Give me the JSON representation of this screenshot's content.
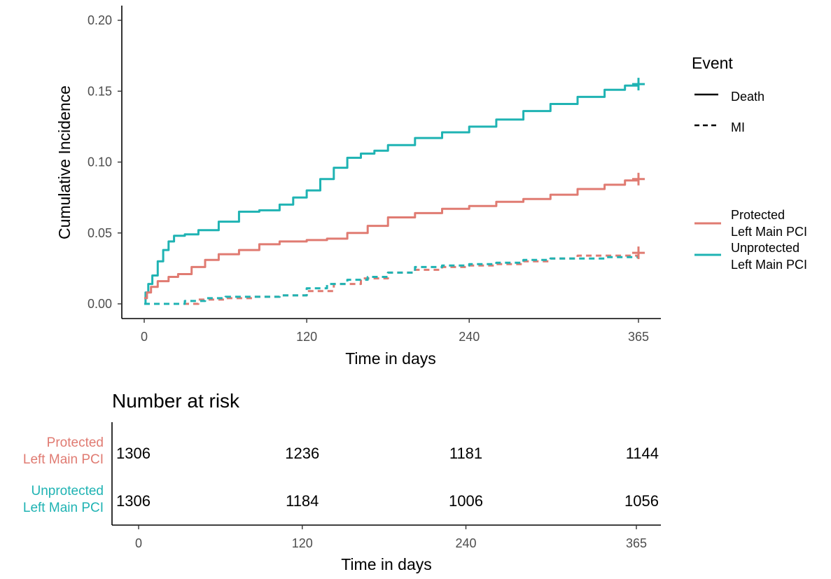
{
  "chart_data": {
    "type": "line",
    "ylabel": "Cumulative Incidence",
    "xlabel": "Time in days",
    "xlim": [
      0,
      365
    ],
    "ylim": [
      0,
      0.2
    ],
    "x_ticks": [
      0,
      120,
      240,
      365
    ],
    "y_ticks": [
      "0.00",
      "0.05",
      "0.10",
      "0.15",
      "0.20"
    ],
    "x_tick_labels": [
      "0",
      "120",
      "240",
      "365"
    ],
    "grid": false,
    "legend_event": {
      "title": "Event",
      "items": [
        {
          "label": "Death",
          "linetype": "solid"
        },
        {
          "label": "MI",
          "linetype": "dashed"
        }
      ],
      "placement": "right"
    },
    "legend_group": {
      "items": [
        {
          "label_line1": "Protected",
          "label_line2": "Left Main PCI",
          "color": "#E07B72"
        },
        {
          "label_line1": "Unprotected",
          "label_line2": "Left Main PCI",
          "color": "#1FB3B3"
        }
      ],
      "placement": "right"
    },
    "series": [
      {
        "group": "Unprotected",
        "event": "Death",
        "color": "#1FB3B3",
        "linetype": "solid",
        "points": [
          [
            0,
            0
          ],
          [
            1,
            0.008
          ],
          [
            3,
            0.014
          ],
          [
            6,
            0.02
          ],
          [
            10,
            0.03
          ],
          [
            14,
            0.038
          ],
          [
            18,
            0.044
          ],
          [
            22,
            0.048
          ],
          [
            30,
            0.049
          ],
          [
            40,
            0.052
          ],
          [
            55,
            0.058
          ],
          [
            70,
            0.065
          ],
          [
            85,
            0.066
          ],
          [
            100,
            0.07
          ],
          [
            110,
            0.075
          ],
          [
            120,
            0.08
          ],
          [
            130,
            0.088
          ],
          [
            140,
            0.096
          ],
          [
            150,
            0.103
          ],
          [
            160,
            0.106
          ],
          [
            170,
            0.108
          ],
          [
            180,
            0.112
          ],
          [
            200,
            0.117
          ],
          [
            220,
            0.121
          ],
          [
            240,
            0.125
          ],
          [
            260,
            0.13
          ],
          [
            280,
            0.136
          ],
          [
            300,
            0.141
          ],
          [
            320,
            0.146
          ],
          [
            340,
            0.151
          ],
          [
            355,
            0.154
          ],
          [
            365,
            0.155
          ]
        ]
      },
      {
        "group": "Protected",
        "event": "Death",
        "color": "#E07B72",
        "linetype": "solid",
        "points": [
          [
            0,
            0.004
          ],
          [
            2,
            0.008
          ],
          [
            5,
            0.012
          ],
          [
            10,
            0.016
          ],
          [
            18,
            0.019
          ],
          [
            25,
            0.021
          ],
          [
            35,
            0.026
          ],
          [
            45,
            0.031
          ],
          [
            55,
            0.035
          ],
          [
            70,
            0.038
          ],
          [
            85,
            0.042
          ],
          [
            100,
            0.044
          ],
          [
            120,
            0.045
          ],
          [
            135,
            0.046
          ],
          [
            150,
            0.05
          ],
          [
            165,
            0.055
          ],
          [
            180,
            0.061
          ],
          [
            200,
            0.064
          ],
          [
            220,
            0.067
          ],
          [
            240,
            0.069
          ],
          [
            260,
            0.072
          ],
          [
            280,
            0.074
          ],
          [
            300,
            0.077
          ],
          [
            320,
            0.081
          ],
          [
            340,
            0.084
          ],
          [
            355,
            0.087
          ],
          [
            365,
            0.088
          ]
        ]
      },
      {
        "group": "Protected",
        "event": "MI",
        "color": "#E07B72",
        "linetype": "dashed",
        "points": [
          [
            0,
            0
          ],
          [
            30,
            0
          ],
          [
            40,
            0.003
          ],
          [
            60,
            0.004
          ],
          [
            80,
            0.005
          ],
          [
            100,
            0.006
          ],
          [
            120,
            0.009
          ],
          [
            140,
            0.014
          ],
          [
            160,
            0.018
          ],
          [
            180,
            0.022
          ],
          [
            200,
            0.024
          ],
          [
            220,
            0.026
          ],
          [
            240,
            0.027
          ],
          [
            260,
            0.028
          ],
          [
            280,
            0.03
          ],
          [
            300,
            0.032
          ],
          [
            320,
            0.034
          ],
          [
            340,
            0.034
          ],
          [
            365,
            0.036
          ]
        ]
      },
      {
        "group": "Unprotected",
        "event": "MI",
        "color": "#1FB3B3",
        "linetype": "dashed",
        "points": [
          [
            0,
            0
          ],
          [
            20,
            0
          ],
          [
            30,
            0.002
          ],
          [
            45,
            0.004
          ],
          [
            60,
            0.005
          ],
          [
            80,
            0.005
          ],
          [
            100,
            0.006
          ],
          [
            120,
            0.011
          ],
          [
            135,
            0.014
          ],
          [
            150,
            0.017
          ],
          [
            165,
            0.019
          ],
          [
            180,
            0.022
          ],
          [
            200,
            0.026
          ],
          [
            220,
            0.027
          ],
          [
            240,
            0.028
          ],
          [
            260,
            0.029
          ],
          [
            280,
            0.031
          ],
          [
            300,
            0.032
          ],
          [
            320,
            0.032
          ],
          [
            340,
            0.033
          ],
          [
            365,
            0.034
          ]
        ]
      }
    ],
    "censor_marks": [
      {
        "x": 365,
        "y": 0.155,
        "color": "#1FB3B3"
      },
      {
        "x": 365,
        "y": 0.088,
        "color": "#E07B72"
      },
      {
        "x": 365,
        "y": 0.036,
        "color": "#E07B72"
      }
    ],
    "risk_table": {
      "title": "Number at risk",
      "xlabel": "Time in days",
      "x_tick_labels": [
        "0",
        "120",
        "240",
        "365"
      ],
      "rows": [
        {
          "label_line1": "Protected",
          "label_line2": "Left Main PCI",
          "color": "#E07B72",
          "values": [
            "1306",
            "1236",
            "1181",
            "1144"
          ]
        },
        {
          "label_line1": "Unprotected",
          "label_line2": "Left Main PCI",
          "color": "#1FB3B3",
          "values": [
            "1306",
            "1184",
            "1006",
            "1056"
          ]
        }
      ]
    }
  }
}
